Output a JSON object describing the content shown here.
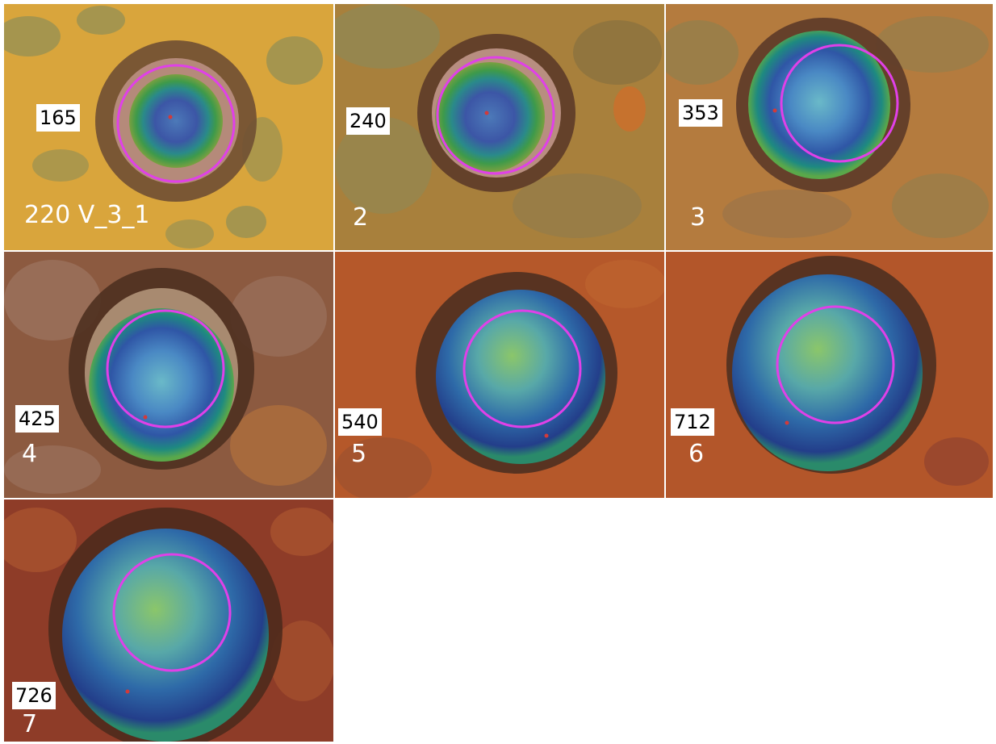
{
  "figure": {
    "run_label": "220 V_3_1",
    "mark_color": "#e040e8",
    "panels": [
      {
        "index": "1",
        "value": "165",
        "background": "yellow-green"
      },
      {
        "index": "2",
        "value": "240",
        "background": "olive-orange"
      },
      {
        "index": "3",
        "value": "353",
        "background": "orange-olive"
      },
      {
        "index": "4",
        "value": "425",
        "background": "brown"
      },
      {
        "index": "5",
        "value": "540",
        "background": "rust"
      },
      {
        "index": "6",
        "value": "712",
        "background": "rust"
      },
      {
        "index": "7",
        "value": "726",
        "background": "dark-rust"
      }
    ]
  }
}
